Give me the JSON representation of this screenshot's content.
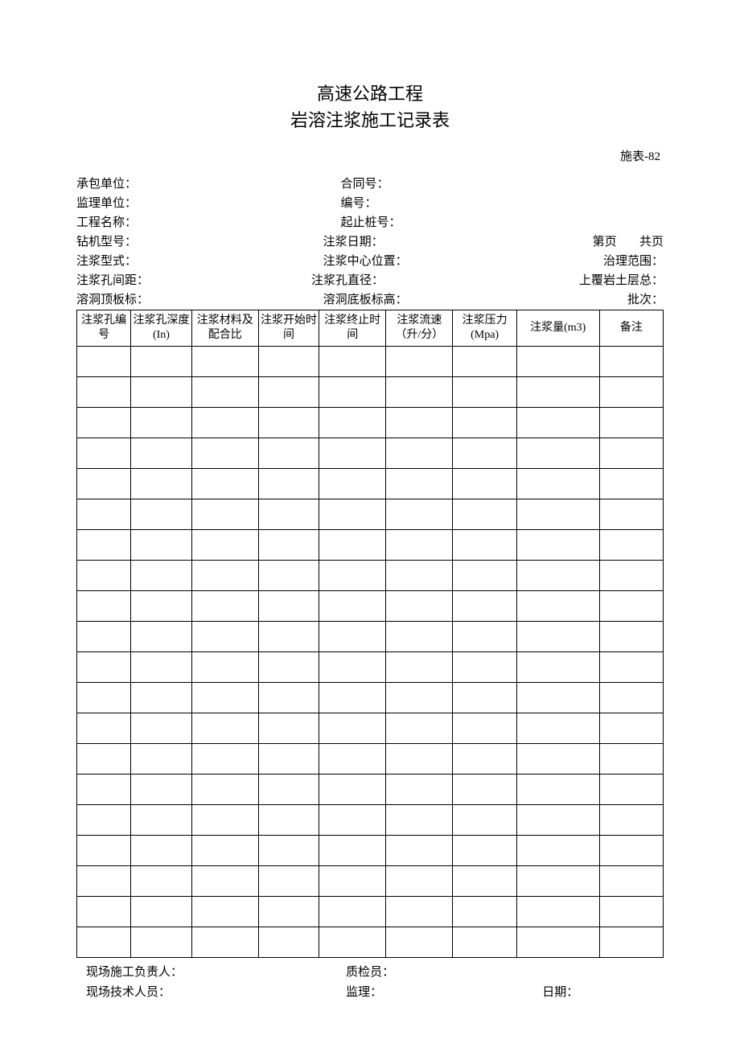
{
  "title": {
    "line1": "高速公路工程",
    "line2": "岩溶注浆施工记录表"
  },
  "form_code": "施表-82",
  "meta": {
    "contractor_label": "承包单位：",
    "contract_no_label": "合同号：",
    "supervisor_label": "监理单位：",
    "serial_no_label": "编号：",
    "project_name_label": "工程名称：",
    "stake_range_label": "起止桩号：",
    "drill_model_label": "钻机型号：",
    "grout_date_label": "注浆日期：",
    "page_label": "第页",
    "total_pages_label": "共页",
    "grout_type_label": "注浆型式：",
    "grout_center_label": "注浆中心位置：",
    "treat_range_label": "治理范围：",
    "hole_spacing_label": "注浆孔间距：",
    "hole_diameter_label": "注浆孔直径：",
    "overburden_label": "上覆岩土层总：",
    "cave_top_label": "溶洞顶板标：",
    "cave_bottom_label": "溶洞底板标高：",
    "batch_label": "批次："
  },
  "table": {
    "columns": [
      "注浆孔编号",
      "注浆孔深度(In)",
      "注浆材料及配合比",
      "注浆开始时间",
      "注浆终止时间",
      "注浆流速（升/分）",
      "注浆压力(Mpa)",
      "注浆量(m3)",
      "备注"
    ],
    "col_widths_pct": [
      8.5,
      9.5,
      10.5,
      9.5,
      10.5,
      10.5,
      10,
      13,
      10
    ],
    "num_rows": 20,
    "border_color": "#000000",
    "header_fontsize": 14,
    "cell_fontsize": 14
  },
  "footer": {
    "site_manager_label": "现场施工负责人：",
    "qc_label": "质检员：",
    "site_tech_label": "现场技术人员：",
    "supervise_label": "监理：",
    "date_label": "日期："
  },
  "colors": {
    "text": "#000000",
    "background": "#ffffff",
    "border": "#000000"
  }
}
